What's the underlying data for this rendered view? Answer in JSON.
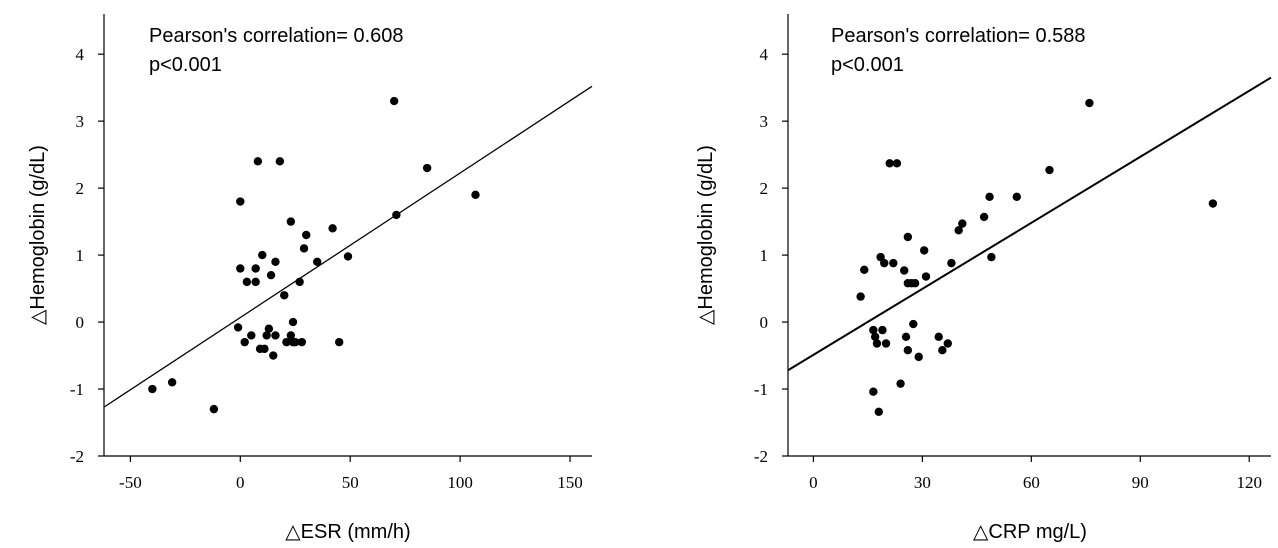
{
  "chart_data": [
    {
      "type": "scatter",
      "title": "",
      "xlabel": "△ESR (mm/h)",
      "ylabel": "△Hemoglobin (g/dL)",
      "xlim": [
        -62,
        160
      ],
      "ylim": [
        -2,
        4.6
      ],
      "xticks": [
        -50,
        0,
        50,
        100,
        150
      ],
      "yticks": [
        -2,
        -1,
        0,
        1,
        2,
        3,
        4
      ],
      "annotations": [
        "Pearson's correlation= 0.608",
        "p<0.001"
      ],
      "regression": {
        "x": [
          -62,
          160
        ],
        "y": [
          -1.27,
          3.52
        ]
      },
      "x": [
        -40,
        -31,
        -12,
        -1,
        0,
        0,
        2,
        3,
        5,
        7,
        7,
        8,
        9,
        10,
        11,
        12,
        13,
        14,
        15,
        16,
        16,
        18,
        20,
        21,
        23,
        23,
        24,
        24,
        25,
        27,
        28,
        29,
        30,
        35,
        42,
        45,
        49,
        70,
        71,
        85,
        107
      ],
      "y": [
        -1.0,
        -0.9,
        -1.3,
        -0.08,
        1.8,
        0.8,
        -0.3,
        0.6,
        -0.2,
        0.8,
        0.6,
        2.4,
        -0.4,
        1.0,
        -0.4,
        -0.2,
        -0.1,
        0.7,
        -0.5,
        -0.2,
        0.9,
        2.4,
        0.4,
        -0.3,
        -0.2,
        1.5,
        -0.3,
        0.0,
        -0.3,
        0.6,
        -0.3,
        1.1,
        1.3,
        0.9,
        1.4,
        -0.3,
        0.98,
        3.3,
        1.6,
        2.3,
        1.9
      ]
    },
    {
      "type": "scatter",
      "title": "",
      "xlabel": "△CRP mg/L)",
      "ylabel": "△Hemoglobin (g/dL)",
      "xlim": [
        -7,
        126
      ],
      "ylim": [
        -2,
        4.6
      ],
      "xticks": [
        0,
        30,
        60,
        90,
        120
      ],
      "yticks": [
        -2,
        -1,
        0,
        1,
        2,
        3,
        4
      ],
      "annotations": [
        "Pearson's correlation= 0.588",
        "p<0.001"
      ],
      "regression": {
        "x": [
          -7,
          126
        ],
        "y": [
          -0.72,
          3.65
        ]
      },
      "x": [
        13,
        14,
        16.5,
        16.5,
        17,
        17.5,
        18,
        18.5,
        19,
        19.5,
        20,
        21,
        22,
        23,
        24,
        25,
        25.5,
        26,
        26,
        26,
        27,
        27.5,
        28,
        29,
        30.5,
        31,
        34.5,
        35.5,
        37,
        38,
        40,
        41,
        47,
        48.5,
        49,
        56,
        65,
        76,
        110
      ],
      "y": [
        0.38,
        0.78,
        -0.12,
        -1.04,
        -0.22,
        -0.32,
        -1.34,
        0.97,
        -0.12,
        0.88,
        -0.32,
        2.37,
        0.88,
        2.37,
        -0.92,
        0.77,
        -0.22,
        0.58,
        -0.42,
        1.27,
        0.58,
        -0.03,
        0.58,
        -0.52,
        1.07,
        0.68,
        -0.22,
        -0.42,
        -0.32,
        0.88,
        1.37,
        1.47,
        1.57,
        1.87,
        0.97,
        1.87,
        2.27,
        3.27,
        1.77
      ]
    }
  ]
}
